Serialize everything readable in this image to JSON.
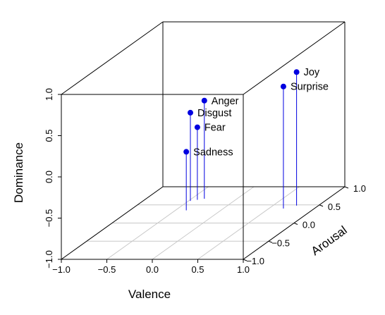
{
  "chart_data": {
    "type": "scatter3d",
    "title": "",
    "xlabel": "Valence",
    "ylabel": "Arousal",
    "zlabel": "Dominance",
    "xlim": [
      -1.0,
      1.0
    ],
    "ylim": [
      -1.0,
      1.0
    ],
    "zlim": [
      -1.0,
      1.0
    ],
    "x_ticks": [
      "−1.0",
      "−0.5",
      "0.0",
      "0.5",
      "1.0"
    ],
    "y_ticks": [
      "−1.0",
      "−0.5",
      "0.0",
      "0.5",
      "1.0"
    ],
    "z_ticks": [
      "−1.0",
      "−0.5",
      "0.0",
      "0.5",
      "1.0"
    ],
    "point_color": "#0000e0",
    "grid_color": "#c8c8c8",
    "points": [
      {
        "label": "Joy",
        "x": 0.76,
        "y": 0.48,
        "z": 0.62
      },
      {
        "label": "Surprise",
        "x": 0.66,
        "y": 0.4,
        "z": 0.48
      },
      {
        "label": "Anger",
        "x": -0.36,
        "y": 0.67,
        "z": 0.19
      },
      {
        "label": "Disgust",
        "x": -0.48,
        "y": 0.61,
        "z": 0.07
      },
      {
        "label": "Fear",
        "x": -0.42,
        "y": 0.64,
        "z": -0.12
      },
      {
        "label": "Sadness",
        "x": -0.38,
        "y": 0.35,
        "z": -0.29
      }
    ]
  }
}
